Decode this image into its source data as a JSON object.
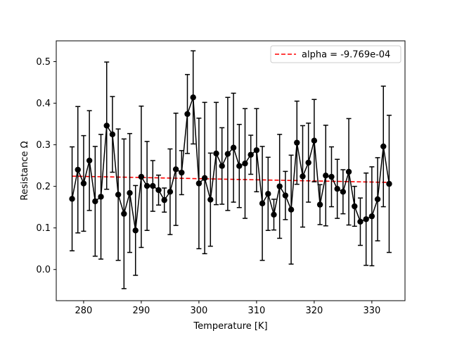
{
  "chart_data": {
    "type": "line",
    "xlabel": "Temperature [K]",
    "ylabel": "Resistance Ω",
    "xlim": [
      275.25,
      335.75
    ],
    "ylim": [
      -0.075,
      0.55
    ],
    "xticks": [
      280,
      290,
      300,
      310,
      320,
      330
    ],
    "yticks": [
      0.0,
      0.1,
      0.2,
      0.3,
      0.4,
      0.5
    ],
    "xtick_labels": [
      "280",
      "290",
      "300",
      "310",
      "320",
      "330"
    ],
    "ytick_labels": [
      "0.0",
      "0.1",
      "0.2",
      "0.3",
      "0.4",
      "0.5"
    ],
    "grid": false,
    "legend_position": "top-right",
    "series": [
      {
        "kind": "errorbar",
        "color": "#000000",
        "marker": "circle",
        "x": [
          278,
          279,
          280,
          281,
          282,
          283,
          284,
          285,
          286,
          287,
          288,
          289,
          290,
          291,
          292,
          293,
          294,
          295,
          296,
          297,
          298,
          299,
          300,
          301,
          302,
          303,
          304,
          305,
          306,
          307,
          308,
          309,
          310,
          311,
          312,
          313,
          314,
          315,
          316,
          317,
          318,
          319,
          320,
          321,
          322,
          323,
          324,
          325,
          326,
          327,
          328,
          329,
          330,
          331,
          332,
          333
        ],
        "y": [
          0.17,
          0.24,
          0.207,
          0.262,
          0.164,
          0.175,
          0.346,
          0.325,
          0.18,
          0.134,
          0.184,
          0.094,
          0.223,
          0.201,
          0.201,
          0.191,
          0.167,
          0.187,
          0.241,
          0.233,
          0.374,
          0.414,
          0.207,
          0.22,
          0.168,
          0.279,
          0.249,
          0.278,
          0.293,
          0.249,
          0.255,
          0.276,
          0.287,
          0.159,
          0.182,
          0.132,
          0.2,
          0.178,
          0.144,
          0.305,
          0.224,
          0.257,
          0.31,
          0.156,
          0.226,
          0.223,
          0.194,
          0.187,
          0.235,
          0.152,
          0.115,
          0.121,
          0.128,
          0.169,
          0.296,
          0.206
        ],
        "err": [
          0.125,
          0.152,
          0.115,
          0.12,
          0.132,
          0.15,
          0.153,
          0.091,
          0.158,
          0.18,
          0.143,
          0.108,
          0.17,
          0.107,
          0.061,
          0.036,
          0.029,
          0.103,
          0.135,
          0.053,
          0.095,
          0.112,
          0.157,
          0.182,
          0.112,
          0.123,
          0.092,
          0.136,
          0.131,
          0.1,
          0.132,
          0.047,
          0.1,
          0.137,
          0.088,
          0.037,
          0.125,
          0.058,
          0.131,
          0.1,
          0.122,
          0.095,
          0.099,
          0.048,
          0.121,
          0.072,
          0.071,
          0.053,
          0.128,
          0.048,
          0.057,
          0.111,
          0.119,
          0.1,
          0.145,
          0.165
        ]
      },
      {
        "name": "alpha = -9.769e-04",
        "kind": "fit",
        "color": "#ff0000",
        "dash": "dashed",
        "x": [
          278,
          333
        ],
        "y": [
          0.2245,
          0.2095
        ]
      }
    ]
  }
}
